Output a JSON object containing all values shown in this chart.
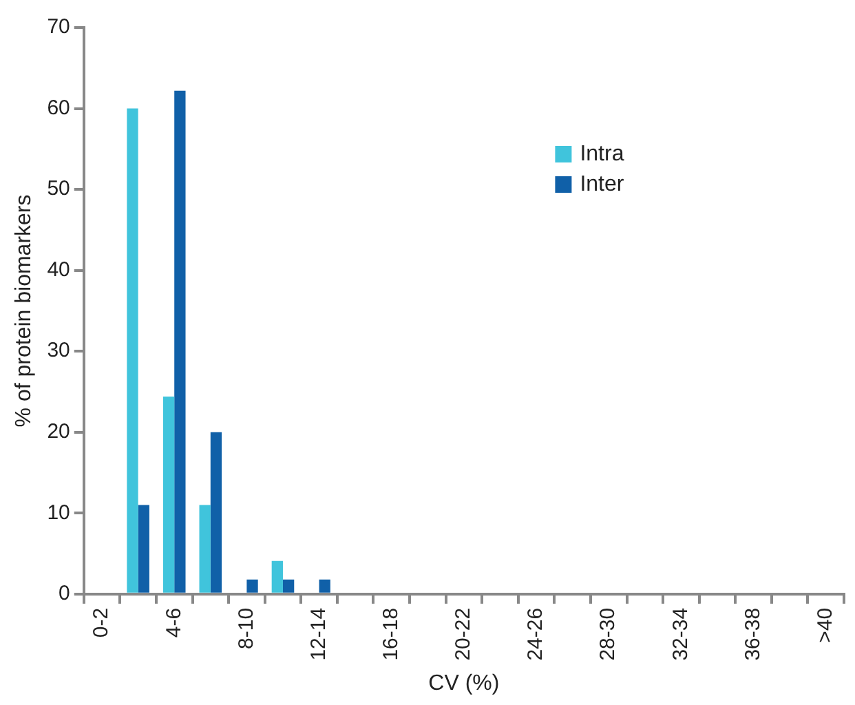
{
  "chart_data": {
    "type": "bar",
    "xlabel": "CV (%)",
    "ylabel": "% of protein biomarkers",
    "categories": [
      "0-2",
      null,
      "4-6",
      null,
      "8-10",
      null,
      "12-14",
      null,
      "16-18",
      null,
      "20-22",
      null,
      "24-26",
      null,
      "28-30",
      null,
      "32-34",
      null,
      "36-38",
      null,
      ">40"
    ],
    "series": [
      {
        "name": "Intra",
        "color": "#40c4dc",
        "values": [
          0,
          60,
          24.4,
          11,
          0,
          4.1,
          0,
          0,
          0,
          0,
          0,
          0,
          0,
          0,
          0,
          0,
          0,
          0,
          0,
          0,
          0
        ]
      },
      {
        "name": "Inter",
        "color": "#1060a8",
        "values": [
          0,
          11,
          62.2,
          20,
          1.8,
          1.8,
          1.8,
          0,
          0,
          0,
          0,
          0,
          0,
          0,
          0,
          0,
          0,
          0,
          0,
          0,
          0
        ]
      }
    ],
    "ylim": [
      0,
      70
    ],
    "yticks": [
      0,
      10,
      20,
      30,
      40,
      50,
      60,
      70
    ],
    "grid": false,
    "legend": "top right"
  }
}
